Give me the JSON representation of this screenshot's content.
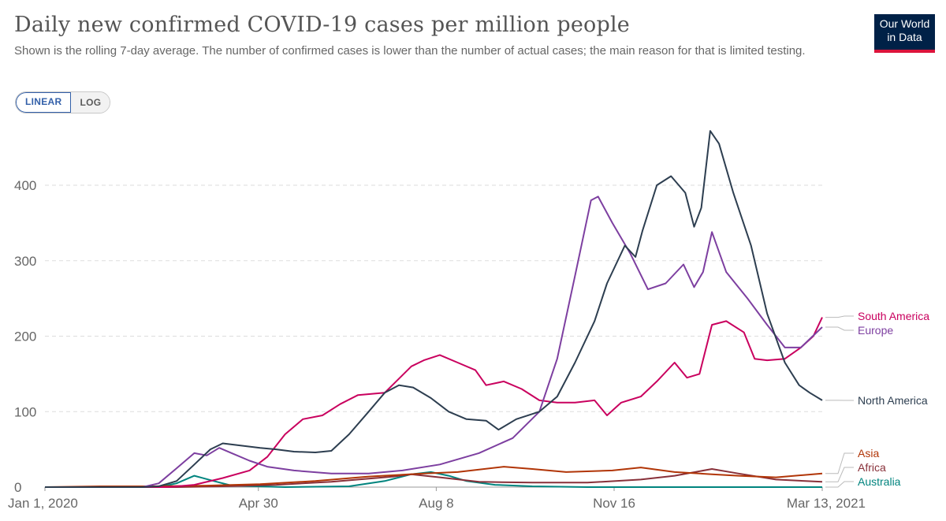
{
  "header": {
    "title": "Daily new confirmed COVID-19 cases per million people",
    "subtitle": "Shown is the rolling 7-day average. The number of confirmed cases is lower than the number of actual cases; the main reason for that is limited testing.",
    "logo_line1": "Our World",
    "logo_line2": "in Data"
  },
  "controls": {
    "linear_label": "LINEAR",
    "log_label": "LOG",
    "active": "linear"
  },
  "colors": {
    "brand": "#002147",
    "accent": "#dc143c",
    "grid": "#dddddd"
  },
  "chart_data": {
    "type": "line",
    "title": "Daily new confirmed COVID-19 cases per million people",
    "x_range": [
      "2020-01-01",
      "2021-03-13"
    ],
    "ylim": [
      0,
      480
    ],
    "y_ticks": [
      0,
      100,
      200,
      300,
      400
    ],
    "x_ticks": [
      {
        "date": "2020-01-01",
        "label": "Jan 1, 2020"
      },
      {
        "date": "2020-04-30",
        "label": "Apr 30"
      },
      {
        "date": "2020-08-08",
        "label": "Aug 8"
      },
      {
        "date": "2020-11-16",
        "label": "Nov 16"
      },
      {
        "date": "2021-03-13",
        "label": "Mar 13, 2021"
      }
    ],
    "grid": "horizontal dashed",
    "series": [
      {
        "name": "North America",
        "color": "#2d3e50",
        "points": [
          [
            "2020-01-01",
            0
          ],
          [
            "2020-02-25",
            0
          ],
          [
            "2020-03-05",
            1
          ],
          [
            "2020-03-15",
            8
          ],
          [
            "2020-03-25",
            30
          ],
          [
            "2020-04-03",
            50
          ],
          [
            "2020-04-10",
            58
          ],
          [
            "2020-04-20",
            55
          ],
          [
            "2020-05-01",
            52
          ],
          [
            "2020-05-10",
            50
          ],
          [
            "2020-05-20",
            47
          ],
          [
            "2020-06-01",
            46
          ],
          [
            "2020-06-10",
            48
          ],
          [
            "2020-06-20",
            70
          ],
          [
            "2020-07-01",
            100
          ],
          [
            "2020-07-10",
            125
          ],
          [
            "2020-07-18",
            135
          ],
          [
            "2020-07-26",
            132
          ],
          [
            "2020-08-05",
            118
          ],
          [
            "2020-08-15",
            100
          ],
          [
            "2020-08-25",
            90
          ],
          [
            "2020-09-05",
            88
          ],
          [
            "2020-09-12",
            76
          ],
          [
            "2020-09-22",
            90
          ],
          [
            "2020-10-05",
            100
          ],
          [
            "2020-10-15",
            120
          ],
          [
            "2020-10-25",
            165
          ],
          [
            "2020-11-05",
            220
          ],
          [
            "2020-11-12",
            270
          ],
          [
            "2020-11-22",
            320
          ],
          [
            "2020-11-28",
            305
          ],
          [
            "2020-12-02",
            340
          ],
          [
            "2020-12-10",
            400
          ],
          [
            "2020-12-18",
            412
          ],
          [
            "2020-12-26",
            390
          ],
          [
            "2020-12-31",
            345
          ],
          [
            "2021-01-04",
            370
          ],
          [
            "2021-01-09",
            472
          ],
          [
            "2021-01-14",
            455
          ],
          [
            "2021-01-22",
            390
          ],
          [
            "2021-02-01",
            320
          ],
          [
            "2021-02-10",
            230
          ],
          [
            "2021-02-20",
            165
          ],
          [
            "2021-02-28",
            135
          ],
          [
            "2021-03-06",
            125
          ],
          [
            "2021-03-13",
            115
          ]
        ]
      },
      {
        "name": "Europe",
        "color": "#7d3fa0",
        "points": [
          [
            "2020-01-01",
            0
          ],
          [
            "2020-02-25",
            0
          ],
          [
            "2020-03-05",
            5
          ],
          [
            "2020-03-15",
            25
          ],
          [
            "2020-03-25",
            45
          ],
          [
            "2020-04-01",
            42
          ],
          [
            "2020-04-08",
            52
          ],
          [
            "2020-04-15",
            45
          ],
          [
            "2020-04-25",
            35
          ],
          [
            "2020-05-05",
            27
          ],
          [
            "2020-05-20",
            22
          ],
          [
            "2020-06-10",
            18
          ],
          [
            "2020-07-01",
            18
          ],
          [
            "2020-07-20",
            22
          ],
          [
            "2020-08-10",
            30
          ],
          [
            "2020-09-01",
            45
          ],
          [
            "2020-09-20",
            65
          ],
          [
            "2020-10-05",
            100
          ],
          [
            "2020-10-15",
            170
          ],
          [
            "2020-10-25",
            280
          ],
          [
            "2020-11-03",
            380
          ],
          [
            "2020-11-07",
            385
          ],
          [
            "2020-11-15",
            350
          ],
          [
            "2020-11-25",
            310
          ],
          [
            "2020-12-05",
            262
          ],
          [
            "2020-12-15",
            270
          ],
          [
            "2020-12-25",
            295
          ],
          [
            "2020-12-31",
            265
          ],
          [
            "2021-01-05",
            285
          ],
          [
            "2021-01-10",
            338
          ],
          [
            "2021-01-18",
            285
          ],
          [
            "2021-01-30",
            250
          ],
          [
            "2021-02-10",
            215
          ],
          [
            "2021-02-20",
            185
          ],
          [
            "2021-03-01",
            185
          ],
          [
            "2021-03-13",
            212
          ]
        ]
      },
      {
        "name": "South America",
        "color": "#c9005e",
        "points": [
          [
            "2020-01-01",
            0
          ],
          [
            "2020-03-10",
            0
          ],
          [
            "2020-03-25",
            3
          ],
          [
            "2020-04-10",
            12
          ],
          [
            "2020-04-25",
            22
          ],
          [
            "2020-05-05",
            40
          ],
          [
            "2020-05-15",
            70
          ],
          [
            "2020-05-25",
            90
          ],
          [
            "2020-06-05",
            95
          ],
          [
            "2020-06-15",
            110
          ],
          [
            "2020-06-25",
            122
          ],
          [
            "2020-07-10",
            125
          ],
          [
            "2020-07-25",
            160
          ],
          [
            "2020-08-01",
            168
          ],
          [
            "2020-08-10",
            175
          ],
          [
            "2020-08-20",
            165
          ],
          [
            "2020-08-30",
            155
          ],
          [
            "2020-09-05",
            135
          ],
          [
            "2020-09-15",
            140
          ],
          [
            "2020-09-25",
            130
          ],
          [
            "2020-10-05",
            115
          ],
          [
            "2020-10-15",
            112
          ],
          [
            "2020-10-25",
            112
          ],
          [
            "2020-11-05",
            115
          ],
          [
            "2020-11-12",
            95
          ],
          [
            "2020-11-20",
            112
          ],
          [
            "2020-12-01",
            120
          ],
          [
            "2020-12-10",
            140
          ],
          [
            "2020-12-20",
            165
          ],
          [
            "2020-12-27",
            145
          ],
          [
            "2021-01-03",
            150
          ],
          [
            "2021-01-10",
            215
          ],
          [
            "2021-01-18",
            220
          ],
          [
            "2021-01-28",
            205
          ],
          [
            "2021-02-03",
            170
          ],
          [
            "2021-02-10",
            168
          ],
          [
            "2021-02-20",
            170
          ],
          [
            "2021-03-01",
            185
          ],
          [
            "2021-03-08",
            200
          ],
          [
            "2021-03-13",
            225
          ]
        ]
      },
      {
        "name": "Asia",
        "color": "#b13507",
        "points": [
          [
            "2020-01-01",
            0
          ],
          [
            "2020-02-01",
            1
          ],
          [
            "2020-03-01",
            1
          ],
          [
            "2020-04-01",
            2
          ],
          [
            "2020-05-01",
            4
          ],
          [
            "2020-06-01",
            8
          ],
          [
            "2020-07-01",
            14
          ],
          [
            "2020-08-01",
            18
          ],
          [
            "2020-08-20",
            20
          ],
          [
            "2020-09-15",
            27
          ],
          [
            "2020-10-01",
            24
          ],
          [
            "2020-10-20",
            20
          ],
          [
            "2020-11-15",
            22
          ],
          [
            "2020-12-01",
            26
          ],
          [
            "2020-12-20",
            20
          ],
          [
            "2021-01-10",
            17
          ],
          [
            "2021-01-25",
            15
          ],
          [
            "2021-02-15",
            13
          ],
          [
            "2021-03-13",
            18
          ]
        ]
      },
      {
        "name": "Africa",
        "color": "#883039",
        "points": [
          [
            "2020-01-01",
            0
          ],
          [
            "2020-03-15",
            0
          ],
          [
            "2020-04-10",
            1
          ],
          [
            "2020-05-10",
            3
          ],
          [
            "2020-06-10",
            7
          ],
          [
            "2020-07-15",
            14
          ],
          [
            "2020-07-25",
            17
          ],
          [
            "2020-08-10",
            13
          ],
          [
            "2020-09-01",
            7
          ],
          [
            "2020-10-01",
            6
          ],
          [
            "2020-11-01",
            6
          ],
          [
            "2020-12-01",
            10
          ],
          [
            "2020-12-20",
            15
          ],
          [
            "2021-01-10",
            24
          ],
          [
            "2021-01-25",
            18
          ],
          [
            "2021-02-15",
            10
          ],
          [
            "2021-03-13",
            7
          ]
        ]
      },
      {
        "name": "Australia",
        "color": "#00847e",
        "points": [
          [
            "2020-01-01",
            0
          ],
          [
            "2020-03-05",
            0
          ],
          [
            "2020-03-15",
            5
          ],
          [
            "2020-03-25",
            15
          ],
          [
            "2020-04-05",
            8
          ],
          [
            "2020-04-15",
            2
          ],
          [
            "2020-05-15",
            0
          ],
          [
            "2020-06-20",
            1
          ],
          [
            "2020-07-10",
            8
          ],
          [
            "2020-07-25",
            17
          ],
          [
            "2020-08-05",
            20
          ],
          [
            "2020-08-15",
            15
          ],
          [
            "2020-08-25",
            8
          ],
          [
            "2020-09-10",
            3
          ],
          [
            "2020-10-01",
            1
          ],
          [
            "2020-11-01",
            0
          ],
          [
            "2021-03-13",
            0
          ]
        ]
      }
    ]
  }
}
